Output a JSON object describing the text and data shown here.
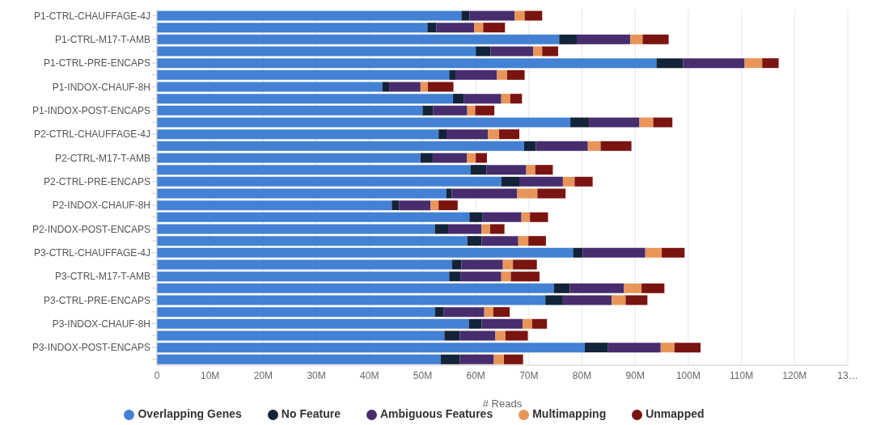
{
  "chart_data": {
    "type": "bar",
    "orientation": "horizontal",
    "stacked": true,
    "categories": [
      "P1-CTRL-CHAUFFAGE-4J",
      null,
      "P1-CTRL-M17-T-AMB",
      null,
      "P1-CTRL-PRE-ENCAPS",
      null,
      "P1-INDOX-CHAUF-8H",
      null,
      "P1-INDOX-POST-ENCAPS",
      null,
      "P2-CTRL-CHAUFFAGE-4J",
      null,
      "P2-CTRL-M17-T-AMB",
      null,
      "P2-CTRL-PRE-ENCAPS",
      null,
      "P2-INDOX-CHAUF-8H",
      null,
      "P2-INDOX-POST-ENCAPS",
      null,
      "P3-CTRL-CHAUFFAGE-4J",
      null,
      "P3-CTRL-M17-T-AMB",
      null,
      "P3-CTRL-PRE-ENCAPS",
      null,
      "P3-INDOX-CHAUF-8H",
      null,
      "P3-INDOX-POST-ENCAPS",
      null
    ],
    "series": [
      {
        "name": "Overlapping Genes",
        "color": "#4281d4",
        "values": [
          57.3,
          50.9,
          75.7,
          60.0,
          94.0,
          55.0,
          42.4,
          55.7,
          50.0,
          77.8,
          53.0,
          69.1,
          49.6,
          59.0,
          64.8,
          54.5,
          44.2,
          58.8,
          52.3,
          58.4,
          78.3,
          55.5,
          55.0,
          74.7,
          73.1,
          52.3,
          58.7,
          54.1,
          80.5,
          53.4
        ]
      },
      {
        "name": "No Feature",
        "color": "#13233a",
        "values": [
          1.5,
          1.7,
          3.3,
          2.8,
          5.0,
          1.3,
          1.3,
          2.1,
          2.0,
          3.5,
          1.5,
          2.2,
          2.3,
          3.0,
          3.4,
          1.0,
          1.4,
          2.5,
          2.5,
          2.7,
          1.8,
          1.8,
          2.1,
          3.0,
          3.3,
          1.7,
          2.4,
          2.9,
          4.4,
          3.6
        ]
      },
      {
        "name": "Ambiguous Features",
        "color": "#472c6e",
        "values": [
          8.5,
          7.1,
          10.1,
          8.0,
          11.6,
          7.7,
          5.9,
          7.0,
          6.4,
          9.5,
          7.8,
          9.8,
          6.4,
          7.5,
          8.2,
          12.3,
          5.9,
          7.3,
          6.3,
          6.9,
          11.8,
          7.8,
          7.7,
          10.2,
          9.2,
          7.6,
          7.7,
          6.7,
          9.9,
          6.4
        ]
      },
      {
        "name": "Multimapping",
        "color": "#e8955a",
        "values": [
          1.9,
          1.7,
          2.3,
          1.7,
          3.3,
          1.9,
          1.4,
          1.7,
          1.5,
          2.6,
          2.1,
          2.4,
          1.7,
          1.7,
          2.2,
          3.8,
          1.5,
          1.6,
          1.6,
          1.9,
          3.1,
          1.9,
          1.8,
          3.3,
          2.6,
          1.7,
          1.8,
          1.9,
          2.6,
          1.9
        ]
      },
      {
        "name": "Unmapped",
        "color": "#7a1410",
        "values": [
          3.3,
          4.1,
          4.9,
          3.0,
          3.1,
          3.3,
          4.8,
          2.2,
          3.6,
          3.6,
          3.8,
          5.8,
          2.1,
          3.3,
          3.4,
          5.3,
          3.6,
          3.4,
          2.7,
          3.3,
          4.3,
          4.5,
          5.4,
          4.3,
          4.1,
          3.1,
          2.8,
          4.2,
          4.9,
          3.6
        ]
      }
    ],
    "xlabel": "# Reads",
    "xlim": [
      0,
      130
    ],
    "xticks": [
      0,
      {
        "value": 10,
        "label": "10M"
      },
      {
        "value": 20,
        "label": "20M"
      },
      {
        "value": 30,
        "label": "30M"
      },
      {
        "value": 40,
        "label": "40M"
      },
      {
        "value": 50,
        "label": "50M"
      },
      {
        "value": 60,
        "label": "60M"
      },
      {
        "value": 70,
        "label": "70M"
      },
      {
        "value": 80,
        "label": "80M"
      },
      {
        "value": 90,
        "label": "90M"
      },
      {
        "value": 100,
        "label": "100M"
      },
      {
        "value": 110,
        "label": "110M"
      },
      {
        "value": 120,
        "label": "120M"
      },
      {
        "value": 130,
        "label": "13…"
      }
    ],
    "grid": "x",
    "legend": "bottom"
  }
}
